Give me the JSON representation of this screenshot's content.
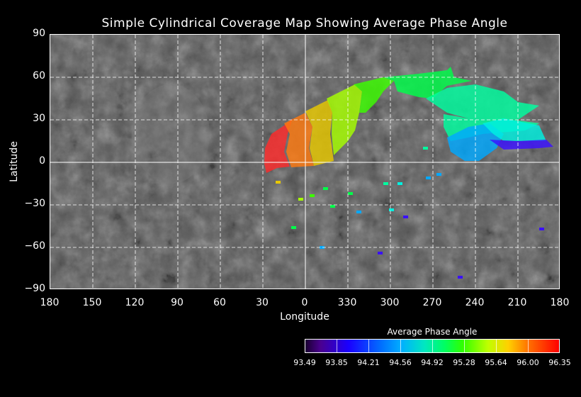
{
  "title": "Simple Cylindrical Coverage Map Showing Average Phase Angle",
  "x_axis": {
    "label": "Longitude",
    "ticks": [
      "180",
      "150",
      "120",
      "90",
      "60",
      "30",
      "0",
      "330",
      "300",
      "270",
      "240",
      "210",
      "180"
    ]
  },
  "y_axis": {
    "label": "Latitude",
    "ticks": [
      "90",
      "60",
      "30",
      "0",
      "−30",
      "−60",
      "−90"
    ]
  },
  "colorbar": {
    "title": "Average Phase Angle",
    "ticks": [
      "93.49",
      "93.85",
      "94.21",
      "94.56",
      "94.92",
      "95.28",
      "95.64",
      "96.00",
      "96.35"
    ],
    "min": 93.49,
    "max": 96.35,
    "colors": [
      "#1a0030",
      "#1a00ff",
      "#00b0ff",
      "#00ff60",
      "#c0ff00",
      "#ff7000",
      "#ff0000"
    ]
  },
  "map": {
    "projection": "simple cylindrical",
    "longitude_range": [
      180,
      -180
    ],
    "latitude_range": [
      90,
      -90
    ],
    "grid": true,
    "coverage_regions": [
      {
        "phase_angle": 96.3,
        "color": "#ff2b2b"
      },
      {
        "phase_angle": 96.05,
        "color": "#ff7a10"
      },
      {
        "phase_angle": 95.75,
        "color": "#e8c800"
      },
      {
        "phase_angle": 95.5,
        "color": "#a6ff00"
      },
      {
        "phase_angle": 95.3,
        "color": "#3cff00"
      },
      {
        "phase_angle": 95.1,
        "color": "#00ff4a"
      },
      {
        "phase_angle": 94.9,
        "color": "#00ffa0"
      },
      {
        "phase_angle": 94.7,
        "color": "#00f0e0"
      },
      {
        "phase_angle": 94.4,
        "color": "#00a8ff"
      },
      {
        "phase_angle": 93.8,
        "color": "#3a10ff"
      }
    ]
  }
}
